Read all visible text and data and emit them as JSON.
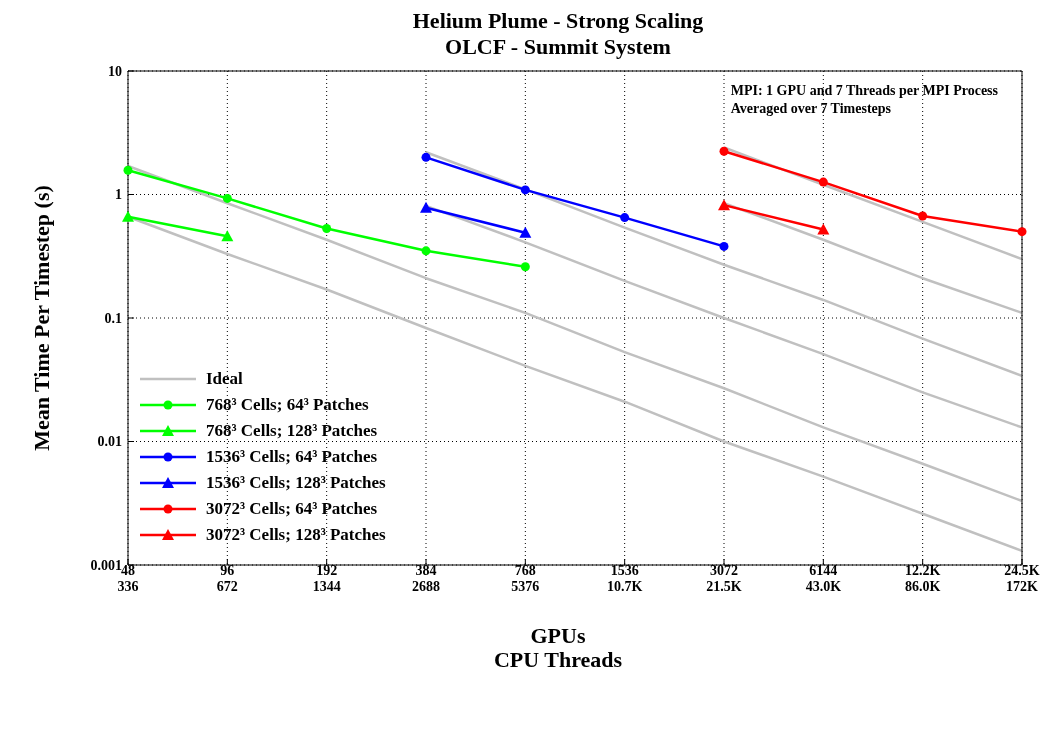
{
  "chart_data": {
    "type": "line",
    "title": "Helium Plume - Strong Scaling",
    "subtitle": "OLCF - Summit System",
    "xlabel": "GPUs\nCPU Threads",
    "ylabel": "Mean Time Per Timestep (s)",
    "annotations": [
      "MPI: 1 GPU and 7 Threads per MPI Process",
      "Averaged over 7 Timesteps"
    ],
    "log": "y",
    "grid": true,
    "legend": "bottom left",
    "line_style": "solid",
    "categories": [
      "48\n336",
      "96\n672",
      "192\n1344",
      "384\n2688",
      "768\n5376",
      "1536\n10.7K",
      "3072\n21.5K",
      "6144\n43.0K",
      "12.2K\n86.0K",
      "24.5K\n172K"
    ],
    "ylim": [
      0.001,
      10
    ],
    "yticks": [
      0.001,
      0.01,
      0.1,
      1,
      10
    ],
    "series": [
      {
        "name": "Ideal",
        "color": "#c0c0c0",
        "marker": "none",
        "values": [
          1.7,
          0.85,
          0.43,
          0.21,
          0.11,
          0.053,
          0.027,
          0.013,
          0.0066,
          0.0033
        ]
      },
      {
        "color": "#c0c0c0",
        "marker": "none",
        "values": [
          0.66,
          0.33,
          0.17,
          0.083,
          0.041,
          0.021,
          0.01,
          0.0052,
          0.0026,
          0.0013
        ]
      },
      {
        "color": "#c0c0c0",
        "marker": "none",
        "values": [
          null,
          null,
          null,
          2.2,
          1.1,
          0.54,
          0.27,
          0.14,
          0.068,
          0.034
        ]
      },
      {
        "color": "#c0c0c0",
        "marker": "none",
        "values": [
          null,
          null,
          null,
          0.81,
          0.41,
          0.2,
          0.1,
          0.051,
          0.025,
          0.013
        ]
      },
      {
        "color": "#c0c0c0",
        "marker": "none",
        "values": [
          null,
          null,
          null,
          null,
          null,
          null,
          2.4,
          1.2,
          0.6,
          0.3
        ]
      },
      {
        "color": "#c0c0c0",
        "marker": "none",
        "values": [
          null,
          null,
          null,
          null,
          null,
          null,
          0.85,
          0.43,
          0.21,
          0.11
        ]
      },
      {
        "name": "768³ Cells; 64³ Patches",
        "color": "#00ff00",
        "marker": "circle",
        "values": [
          1.57,
          0.93,
          0.53,
          0.35,
          0.26,
          null,
          null,
          null,
          null,
          null
        ]
      },
      {
        "name": "768³ Cells; 128³ Patches",
        "color": "#00ff00",
        "marker": "triangle",
        "values": [
          0.66,
          0.46,
          null,
          null,
          null,
          null,
          null,
          null,
          null,
          null
        ]
      },
      {
        "name": "1536³ Cells; 64³ Patches",
        "color": "#0000ff",
        "marker": "circle",
        "values": [
          null,
          null,
          null,
          2.0,
          1.09,
          0.65,
          0.38,
          null,
          null,
          null
        ]
      },
      {
        "name": "1536³ Cells; 128³ Patches",
        "color": "#0000ff",
        "marker": "triangle",
        "values": [
          null,
          null,
          null,
          0.78,
          0.49,
          null,
          null,
          null,
          null,
          null
        ]
      },
      {
        "name": "3072³ Cells; 64³ Patches",
        "color": "#ff0000",
        "marker": "circle",
        "values": [
          null,
          null,
          null,
          null,
          null,
          null,
          2.24,
          1.26,
          0.67,
          0.5
        ]
      },
      {
        "name": "3072³ Cells; 128³ Patches",
        "color": "#ff0000",
        "marker": "triangle",
        "values": [
          null,
          null,
          null,
          null,
          null,
          null,
          0.82,
          0.52,
          null,
          null
        ]
      }
    ]
  }
}
